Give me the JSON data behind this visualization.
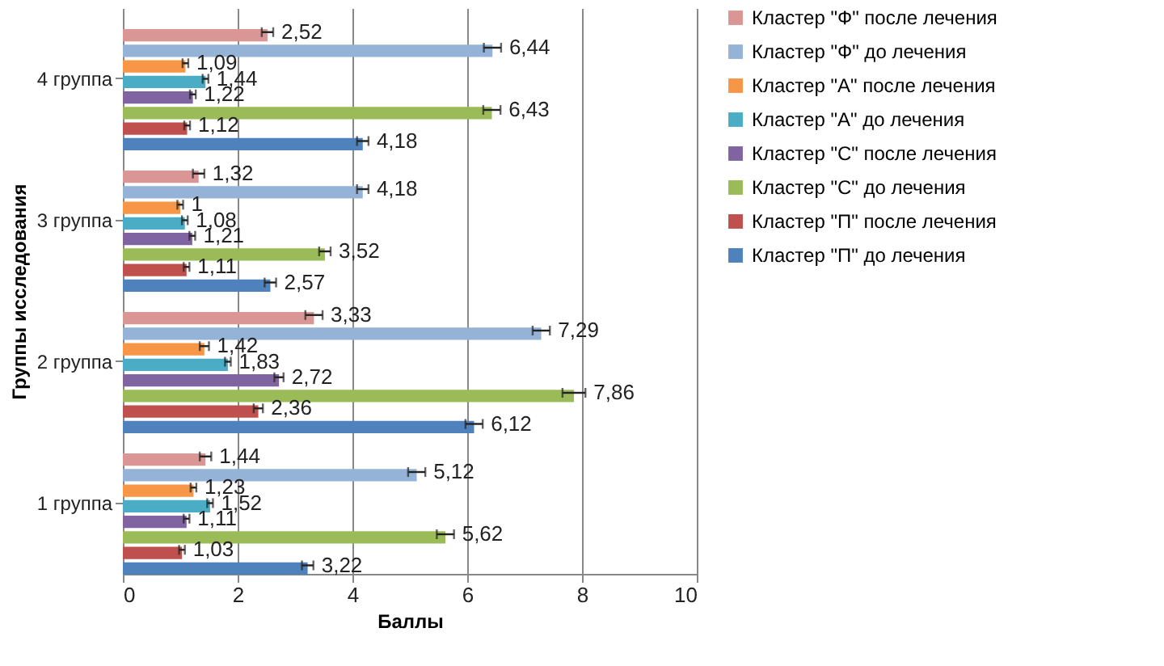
{
  "chart_data": {
    "type": "bar",
    "orientation": "horizontal",
    "xlabel": "Баллы",
    "ylabel": "Группы исследования",
    "categories": [
      "4 группа",
      "3 группа",
      "2 группа",
      "1 группа"
    ],
    "series": [
      {
        "name": "Кластер \"Ф\" после лечения",
        "color": "#d99694",
        "values": [
          2.52,
          1.32,
          3.33,
          1.44
        ],
        "value_labels": [
          "2,52",
          "1,32",
          "3,33",
          "1,44"
        ],
        "errors": [
          0.1,
          0.1,
          0.15,
          0.1
        ]
      },
      {
        "name": "Кластер \"Ф\" до лечения",
        "color": "#95b3d7",
        "values": [
          6.44,
          4.18,
          7.29,
          5.12
        ],
        "value_labels": [
          "6,44",
          "4,18",
          "7,29",
          "5,12"
        ],
        "errors": [
          0.15,
          0.1,
          0.15,
          0.15
        ]
      },
      {
        "name": "Кластер \"А\" после лечения",
        "color": "#f79646",
        "values": [
          1.09,
          1,
          1.42,
          1.23
        ],
        "value_labels": [
          "1,09",
          "1",
          "1,42",
          "1,23"
        ],
        "errors": [
          0.05,
          0.05,
          0.08,
          0.05
        ]
      },
      {
        "name": "Кластер \"А\" до лечения",
        "color": "#4bacc6",
        "values": [
          1.44,
          1.08,
          1.83,
          1.52
        ],
        "value_labels": [
          "1,44",
          "1,08",
          "1,83",
          "1,52"
        ],
        "errors": [
          0.05,
          0.05,
          0.05,
          0.05
        ]
      },
      {
        "name": "Кластер \"С\" после лечения",
        "color": "#8064a2",
        "values": [
          1.22,
          1.21,
          2.72,
          1.11
        ],
        "value_labels": [
          "1,22",
          "1,21",
          "2,72",
          "1,11"
        ],
        "errors": [
          0.05,
          0.05,
          0.08,
          0.05
        ]
      },
      {
        "name": "Кластер \"С\" до лечения",
        "color": "#9bbb59",
        "values": [
          6.43,
          3.52,
          7.86,
          5.62
        ],
        "value_labels": [
          "6,43",
          "3,52",
          "7,86",
          "5,62"
        ],
        "errors": [
          0.15,
          0.1,
          0.2,
          0.15
        ]
      },
      {
        "name": "Кластер \"П\" после лечения",
        "color": "#c0504d",
        "values": [
          1.12,
          1.11,
          2.36,
          1.03
        ],
        "value_labels": [
          "1,12",
          "1,11",
          "2,36",
          "1,03"
        ],
        "errors": [
          0.05,
          0.05,
          0.08,
          0.05
        ]
      },
      {
        "name": "Кластер \"П\" до лечения",
        "color": "#4f81bd",
        "values": [
          4.18,
          2.57,
          6.12,
          3.22
        ],
        "value_labels": [
          "4,18",
          "2,57",
          "6,12",
          "3,22"
        ],
        "errors": [
          0.1,
          0.1,
          0.15,
          0.1
        ]
      }
    ],
    "xlim": [
      0,
      10
    ],
    "xticks": [
      0,
      2,
      4,
      6,
      8,
      10
    ],
    "grid": "x",
    "legend": "right"
  }
}
